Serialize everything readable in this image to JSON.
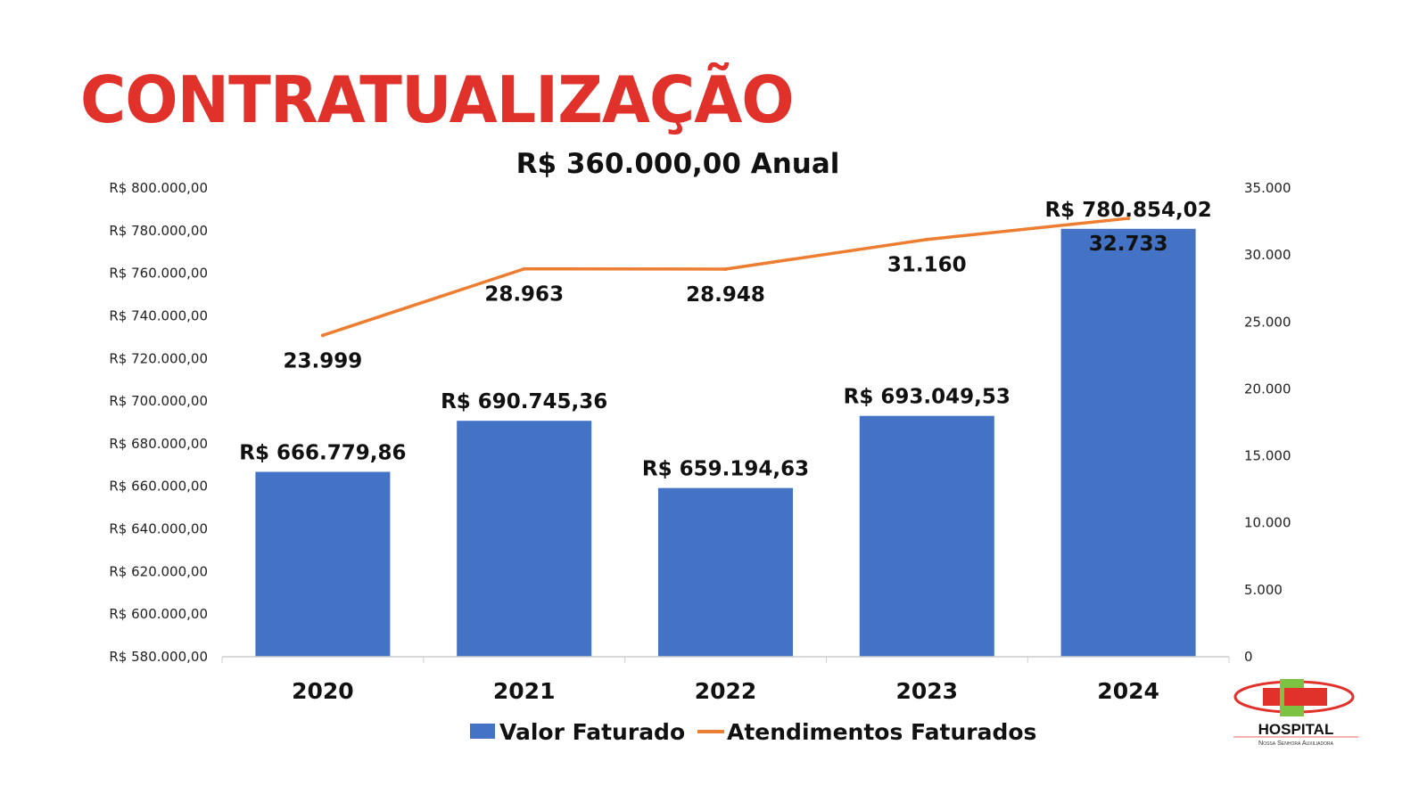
{
  "page_title": "CONTRATUALIZAÇÃO",
  "logo": {
    "name": "HOSPITAL",
    "subtitle": "Nossa Senhora Auxiliadora"
  },
  "colors": {
    "title": "#e0312b",
    "bar": "#4472c4",
    "line": "#ed7d31",
    "logo_red": "#e0312b",
    "logo_green": "#7dc243"
  },
  "chart_data": {
    "type": "bar+line",
    "title": "R$ 360.000,00 Anual",
    "categories": [
      "2020",
      "2021",
      "2022",
      "2023",
      "2024"
    ],
    "series": [
      {
        "name": "Valor Faturado",
        "type": "bar",
        "axis": "left",
        "values": [
          666779.86,
          690745.36,
          659194.63,
          693049.53,
          780854.02
        ],
        "labels": [
          "R$ 666.779,86",
          "R$ 690.745,36",
          "R$ 659.194,63",
          "R$ 693.049,53",
          "R$ 780.854,02"
        ]
      },
      {
        "name": "Atendimentos Faturados",
        "type": "line",
        "axis": "right",
        "values": [
          23999,
          28963,
          28948,
          31160,
          32733
        ],
        "labels": [
          "23.999",
          "28.963",
          "28.948",
          "31.160",
          "32.733"
        ]
      }
    ],
    "left_axis": {
      "range": [
        580000,
        800000
      ],
      "ticks": [
        "R$ 580.000,00",
        "R$ 600.000,00",
        "R$ 620.000,00",
        "R$ 640.000,00",
        "R$ 660.000,00",
        "R$ 680.000,00",
        "R$ 700.000,00",
        "R$ 720.000,00",
        "R$ 740.000,00",
        "R$ 760.000,00",
        "R$ 780.000,00",
        "R$ 800.000,00"
      ]
    },
    "right_axis": {
      "range": [
        0,
        35000
      ],
      "ticks": [
        "0",
        "5.000",
        "10.000",
        "15.000",
        "20.000",
        "25.000",
        "30.000",
        "35.000"
      ]
    },
    "legend": "bottom",
    "grid": false
  }
}
